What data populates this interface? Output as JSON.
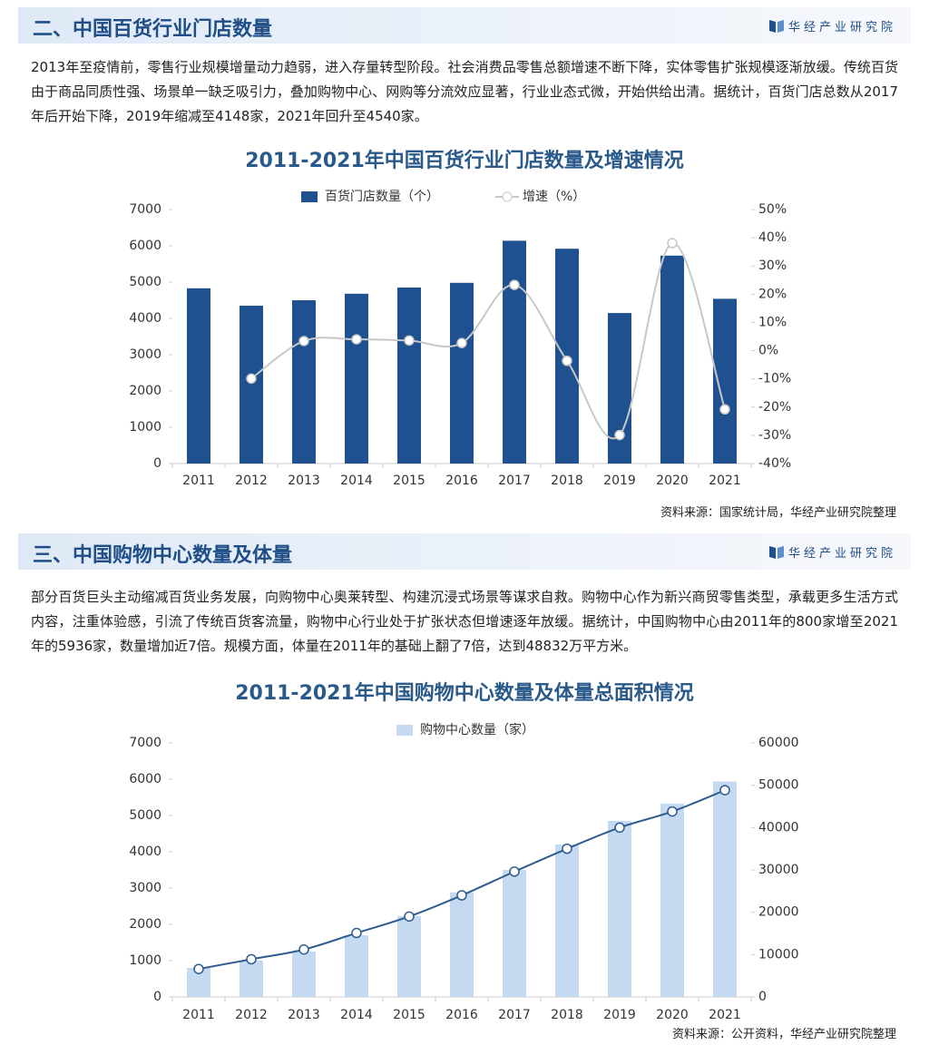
{
  "sections": [
    {
      "title": "二、中国百货行业门店数量",
      "brand": "华经产业研究院",
      "paragraph": "2013年至疫情前，零售行业规模增量动力趋弱，进入存量转型阶段。社会消费品零售总额增速不断下降，实体零售扩张规模逐渐放缓。传统百货由于商品同质性强、场景单一缺乏吸引力，叠加购物中心、网购等分流效应显著，行业业态式微，开始供给出清。据统计，百货门店总数从2017年后开始下降，2019年缩减至4148家，2021年回升至4540家。",
      "source": "资料来源：国家统计局，华经产业研究院整理"
    },
    {
      "title": "三、中国购物中心数量及体量",
      "brand": "华经产业研究院",
      "paragraph": "部分百货巨头主动缩减百货业务发展，向购物中心奥莱转型、构建沉浸式场景等谋求自救。购物中心作为新兴商贸零售类型，承载更多生活方式内容，注重体验感，引流了传统百货客流量，购物中心行业处于扩张状态但增速逐年放缓。据统计，中国购物中心由2011年的800家增至2021年的5936家，数量增加近7倍。规模方面，体量在2011年的基础上翻了7倍，达到48832万平方米。",
      "source": "资料来源：公开资料，华经产业研究院整理"
    }
  ],
  "chart_data": [
    {
      "type": "bar",
      "title": "2011-2021年中国百货行业门店数量及增速情况",
      "categories": [
        "2011",
        "2012",
        "2013",
        "2014",
        "2015",
        "2016",
        "2017",
        "2018",
        "2019",
        "2020",
        "2021"
      ],
      "series": [
        {
          "name": "百货门店数量（个）",
          "color": "#1f5190",
          "type": "bar",
          "values": [
            4830,
            4350,
            4500,
            4680,
            4850,
            4980,
            6140,
            5920,
            4148,
            5730,
            4540
          ]
        },
        {
          "name": "增速（%）",
          "color": "#c8c8c8",
          "type": "line",
          "axis": "y2",
          "values": [
            null,
            -9.9,
            3.4,
            4.0,
            3.6,
            2.7,
            23.3,
            -3.6,
            -29.9,
            38.1,
            -20.8
          ]
        }
      ],
      "ylim": [
        0,
        7000
      ],
      "yticks": [
        0,
        1000,
        2000,
        3000,
        4000,
        5000,
        6000,
        7000
      ],
      "y2lim": [
        -40,
        50
      ],
      "y2ticks": [
        {
          "value": -40,
          "label": "-40%"
        },
        {
          "value": -30,
          "label": "-30%"
        },
        {
          "value": -20,
          "label": "-20%"
        },
        {
          "value": -10,
          "label": "-10%"
        },
        {
          "value": 0,
          "label": "0%"
        },
        {
          "value": 10,
          "label": "10%"
        },
        {
          "value": 20,
          "label": "20%"
        },
        {
          "value": 30,
          "label": "30%"
        },
        {
          "value": 40,
          "label": "40%"
        },
        {
          "value": 50,
          "label": "50%"
        }
      ],
      "grid": false,
      "title_color": "#2a5a8a"
    },
    {
      "type": "bar",
      "title": "2011-2021年中国购物中心数量及体量总面积情况",
      "categories": [
        "2011",
        "2012",
        "2013",
        "2014",
        "2015",
        "2016",
        "2017",
        "2018",
        "2019",
        "2020",
        "2021"
      ],
      "series": [
        {
          "name": "购物中心数量（家）",
          "color": "#c5d9f1",
          "type": "bar",
          "values": [
            800,
            1000,
            1250,
            1700,
            2230,
            2880,
            3500,
            4200,
            4850,
            5330,
            5936
          ]
        },
        {
          "color": "#2e5c8e",
          "type": "line",
          "axis": "y2",
          "values": [
            6600,
            8900,
            11200,
            15100,
            19000,
            24000,
            29600,
            35000,
            40000,
            43800,
            48832
          ]
        }
      ],
      "ylim": [
        0,
        7000
      ],
      "yticks": [
        0,
        1000,
        2000,
        3000,
        4000,
        5000,
        6000,
        7000
      ],
      "y2lim": [
        0,
        60000
      ],
      "y2ticks": [
        0,
        10000,
        20000,
        30000,
        40000,
        50000,
        60000
      ],
      "grid": false,
      "title_color": "#2a5a8a"
    }
  ]
}
